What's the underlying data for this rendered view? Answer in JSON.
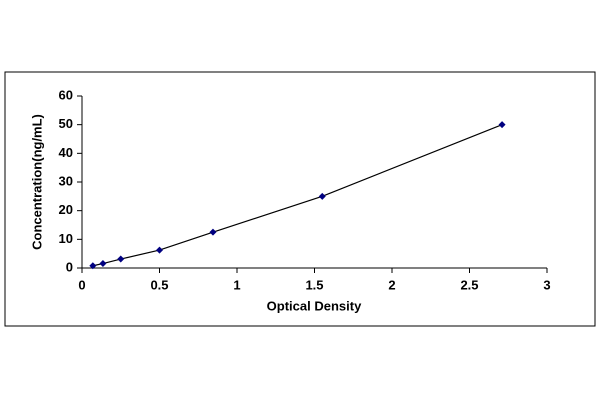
{
  "chart_data": {
    "type": "scatter",
    "x_label": "Optical Density",
    "y_label": "Concentration(ng/mL)",
    "x": [
      0.07,
      0.135,
      0.25,
      0.5,
      0.845,
      1.55,
      2.71
    ],
    "values": [
      0.78,
      1.56,
      3.12,
      6.25,
      12.5,
      25,
      50
    ],
    "color": "#000080",
    "line": true,
    "line_color": "#000000",
    "xlim": [
      0,
      3
    ],
    "xticks": [
      0,
      0.5,
      1,
      1.5,
      2,
      2.5,
      3
    ],
    "ylim": [
      0,
      60
    ],
    "yticks": [
      0,
      10,
      20,
      30,
      40,
      50,
      60
    ],
    "grid": false
  }
}
